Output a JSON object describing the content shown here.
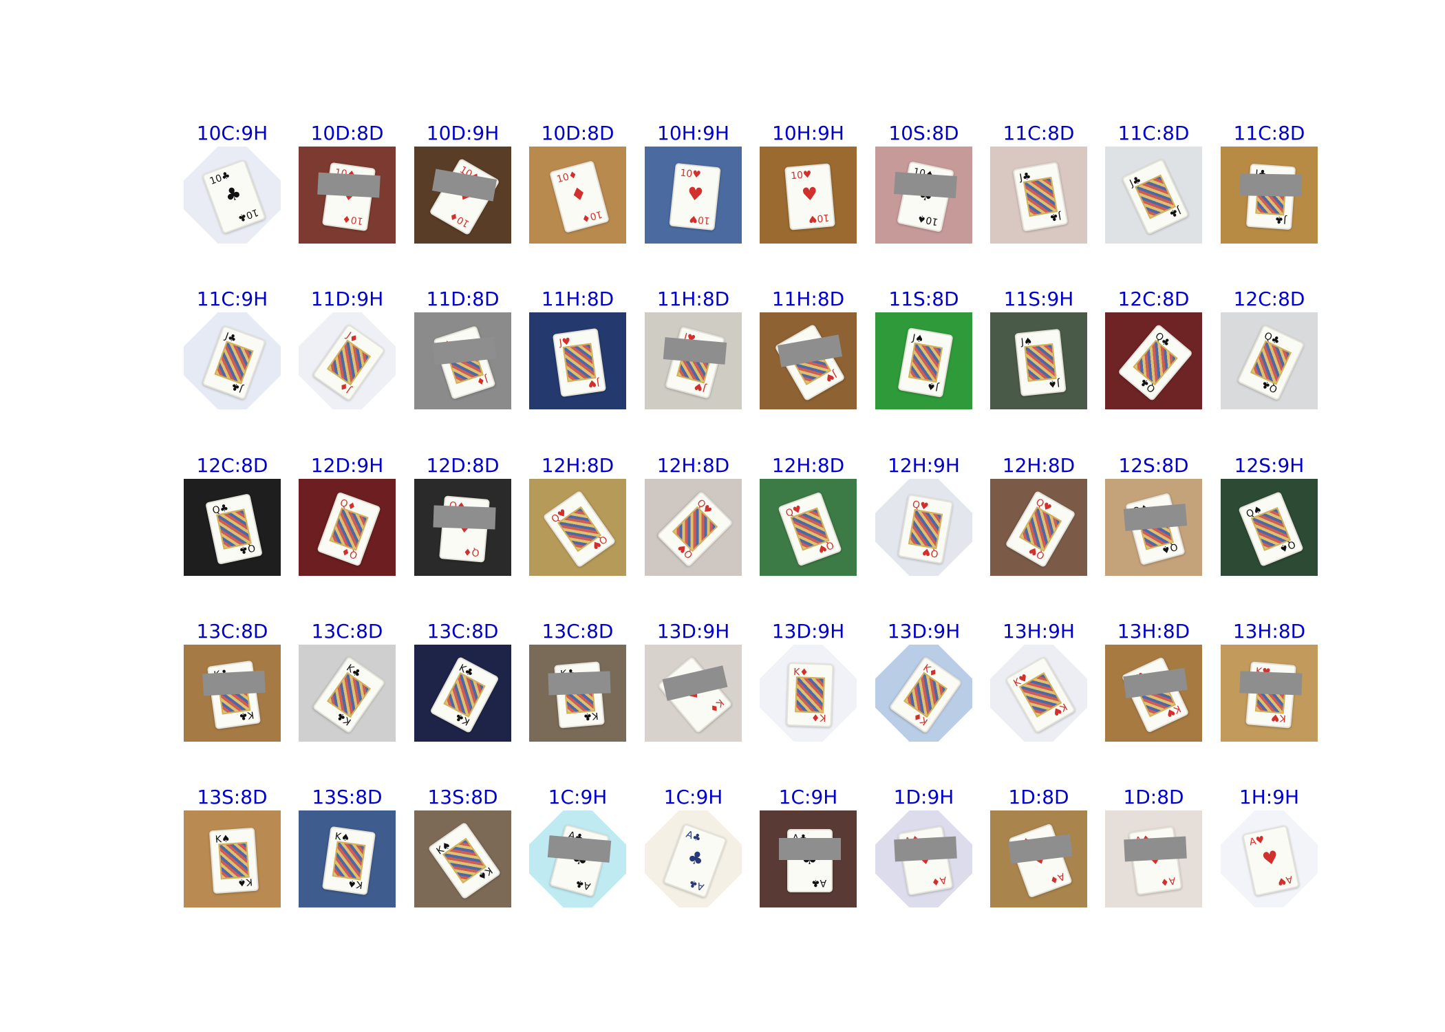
{
  "rows": [
    [
      {
        "label": "10C:9H",
        "bg": "#e9ecf4",
        "rank": "10",
        "suit": "♣",
        "color": "#111111",
        "face": false,
        "rot": -20,
        "corners": true
      },
      {
        "label": "10D:8D",
        "bg": "#7d3a30",
        "rank": "10",
        "suit": "♦",
        "color": "#d2302c",
        "face": false,
        "rot": 8,
        "redact": true
      },
      {
        "label": "10D:9H",
        "bg": "#5a3d26",
        "rank": "10",
        "suit": "♦",
        "color": "#d2302c",
        "face": false,
        "rot": 30,
        "redact": true
      },
      {
        "label": "10D:8D",
        "bg": "#b98a4e",
        "rank": "10",
        "suit": "♦",
        "color": "#d2302c",
        "face": false,
        "rot": -15
      },
      {
        "label": "10H:9H",
        "bg": "#4b6aa0",
        "rank": "10",
        "suit": "♥",
        "color": "#d2302c",
        "face": false,
        "rot": 6
      },
      {
        "label": "10H:9H",
        "bg": "#9a6a30",
        "rank": "10",
        "suit": "♥",
        "color": "#d2302c",
        "face": false,
        "rot": -5
      },
      {
        "label": "10S:8D",
        "bg": "#c79a9a",
        "rank": "10",
        "suit": "♠",
        "color": "#111111",
        "face": false,
        "rot": 12,
        "redact": true
      },
      {
        "label": "11C:8D",
        "bg": "#d9c7c2",
        "rank": "J",
        "suit": "♣",
        "color": "#111111",
        "face": true,
        "rot": -10
      },
      {
        "label": "11C:8D",
        "bg": "#dfe2e4",
        "rank": "J",
        "suit": "♣",
        "color": "#111111",
        "face": true,
        "rot": -25
      },
      {
        "label": "11C:8D",
        "bg": "#b88b45",
        "rank": "J",
        "suit": "♣",
        "color": "#111111",
        "face": true,
        "rot": 4,
        "redact": true
      }
    ],
    [
      {
        "label": "11C:9H",
        "bg": "#e6eaf4",
        "rank": "J",
        "suit": "♣",
        "color": "#111111",
        "face": true,
        "rot": 20,
        "corners": true
      },
      {
        "label": "11D:9H",
        "bg": "#eef0f6",
        "rank": "J",
        "suit": "♦",
        "color": "#d2302c",
        "face": true,
        "rot": 35,
        "corners": true
      },
      {
        "label": "11D:8D",
        "bg": "#8b8b8b",
        "rank": "J",
        "suit": "♦",
        "color": "#d2302c",
        "face": true,
        "rot": -18,
        "redact": true
      },
      {
        "label": "11H:8D",
        "bg": "#243a6e",
        "rank": "J",
        "suit": "♥",
        "color": "#d2302c",
        "face": true,
        "rot": -8
      },
      {
        "label": "11H:8D",
        "bg": "#cfccc4",
        "rank": "J",
        "suit": "♥",
        "color": "#d2302c",
        "face": true,
        "rot": 15,
        "redact": true
      },
      {
        "label": "11H:8D",
        "bg": "#8e6232",
        "rank": "J",
        "suit": "♥",
        "color": "#d2302c",
        "face": true,
        "rot": -30,
        "redact": true
      },
      {
        "label": "11S:8D",
        "bg": "#2f9a3a",
        "rank": "J",
        "suit": "♠",
        "color": "#111111",
        "face": true,
        "rot": 10
      },
      {
        "label": "11S:9H",
        "bg": "#4a5a48",
        "rank": "J",
        "suit": "♠",
        "color": "#111111",
        "face": true,
        "rot": -6
      },
      {
        "label": "12C:8D",
        "bg": "#6e2424",
        "rank": "Q",
        "suit": "♣",
        "color": "#111111",
        "face": true,
        "rot": 40
      },
      {
        "label": "12C:8D",
        "bg": "#d8dadc",
        "rank": "Q",
        "suit": "♣",
        "color": "#111111",
        "face": true,
        "rot": 25
      }
    ],
    [
      {
        "label": "12C:8D",
        "bg": "#1e1e1e",
        "rank": "Q",
        "suit": "♣",
        "color": "#111111",
        "face": true,
        "rot": -12
      },
      {
        "label": "12D:9H",
        "bg": "#6c1e20",
        "rank": "Q",
        "suit": "♦",
        "color": "#d2302c",
        "face": true,
        "rot": 20
      },
      {
        "label": "12D:8D",
        "bg": "#2a2a2a",
        "rank": "Q",
        "suit": "♦",
        "color": "#d2302c",
        "face": false,
        "rot": 5,
        "redact": true
      },
      {
        "label": "12H:8D",
        "bg": "#b69a5a",
        "rank": "Q",
        "suit": "♥",
        "color": "#d2302c",
        "face": true,
        "rot": -35
      },
      {
        "label": "12H:8D",
        "bg": "#cfc7c2",
        "rank": "Q",
        "suit": "♥",
        "color": "#d2302c",
        "face": true,
        "rot": 45
      },
      {
        "label": "12H:8D",
        "bg": "#3c7a46",
        "rank": "Q",
        "suit": "♥",
        "color": "#d2302c",
        "face": true,
        "rot": -20
      },
      {
        "label": "12H:9H",
        "bg": "#e4e6ee",
        "rank": "Q",
        "suit": "♥",
        "color": "#d2302c",
        "face": true,
        "rot": 10,
        "corners": true
      },
      {
        "label": "12H:8D",
        "bg": "#7b5b48",
        "rank": "Q",
        "suit": "♥",
        "color": "#d2302c",
        "face": true,
        "rot": 30
      },
      {
        "label": "12S:8D",
        "bg": "#c4a27a",
        "rank": "Q",
        "suit": "♠",
        "color": "#111111",
        "face": true,
        "rot": -15,
        "redact": true
      },
      {
        "label": "12S:9H",
        "bg": "#2c4a34",
        "rank": "Q",
        "suit": "♠",
        "color": "#111111",
        "face": true,
        "rot": -22
      }
    ],
    [
      {
        "label": "13C:8D",
        "bg": "#a67a44",
        "rank": "K",
        "suit": "♣",
        "color": "#111111",
        "face": true,
        "rot": -8,
        "redact": true
      },
      {
        "label": "13C:8D",
        "bg": "#cfcfcf",
        "rank": "K",
        "suit": "♣",
        "color": "#111111",
        "face": true,
        "rot": 35
      },
      {
        "label": "13C:8D",
        "bg": "#1e2448",
        "rank": "K",
        "suit": "♣",
        "color": "#111111",
        "face": true,
        "rot": 28
      },
      {
        "label": "13C:8D",
        "bg": "#7a6a58",
        "rank": "K",
        "suit": "♣",
        "color": "#111111",
        "face": true,
        "rot": -5,
        "redact": true
      },
      {
        "label": "13D:9H",
        "bg": "#d7d2cc",
        "rank": "K",
        "suit": "♦",
        "color": "#d2302c",
        "face": false,
        "rot": -40,
        "redact": true
      },
      {
        "label": "13D:9H",
        "bg": "#f0f2f8",
        "rank": "K",
        "suit": "♦",
        "color": "#d2302c",
        "face": true,
        "rot": 2,
        "corners": true
      },
      {
        "label": "13D:9H",
        "bg": "#b9cde6",
        "rank": "K",
        "suit": "♦",
        "color": "#d2302c",
        "face": true,
        "rot": 35,
        "corners": true
      },
      {
        "label": "13H:9H",
        "bg": "#eceef4",
        "rank": "K",
        "suit": "♥",
        "color": "#d2302c",
        "face": true,
        "rot": -30,
        "corners": true
      },
      {
        "label": "13H:8D",
        "bg": "#a77a42",
        "rank": "K",
        "suit": "♥",
        "color": "#d2302c",
        "face": true,
        "rot": -25,
        "redact": true
      },
      {
        "label": "13H:8D",
        "bg": "#c19a5c",
        "rank": "K",
        "suit": "♥",
        "color": "#d2302c",
        "face": true,
        "rot": 5,
        "redact": true
      }
    ],
    [
      {
        "label": "13S:8D",
        "bg": "#b98a52",
        "rank": "K",
        "suit": "♠",
        "color": "#111111",
        "face": true,
        "rot": -4
      },
      {
        "label": "13S:8D",
        "bg": "#3e5c8e",
        "rank": "K",
        "suit": "♠",
        "color": "#111111",
        "face": true,
        "rot": 8
      },
      {
        "label": "13S:8D",
        "bg": "#7c6a56",
        "rank": "K",
        "suit": "♠",
        "color": "#111111",
        "face": true,
        "rot": -35
      },
      {
        "label": "1C:9H",
        "bg": "#bfeaf2",
        "rank": "A",
        "suit": "♣",
        "color": "#111111",
        "face": false,
        "rot": 15,
        "corners": true,
        "redact": true
      },
      {
        "label": "1C:9H",
        "bg": "#f4f0e6",
        "rank": "A",
        "suit": "♣",
        "color": "#2a3a78",
        "face": false,
        "rot": 20,
        "corners": true
      },
      {
        "label": "1C:9H",
        "bg": "#5a3a34",
        "rank": "A",
        "suit": "♣",
        "color": "#111111",
        "face": false,
        "rot": 0,
        "redact": true
      },
      {
        "label": "1D:9H",
        "bg": "#dcdcec",
        "rank": "A",
        "suit": "♦",
        "color": "#d2302c",
        "face": false,
        "rot": -10,
        "corners": true,
        "redact": true
      },
      {
        "label": "1D:8D",
        "bg": "#a9844c",
        "rank": "A",
        "suit": "♦",
        "color": "#d2302c",
        "face": false,
        "rot": -20,
        "redact": true
      },
      {
        "label": "1D:8D",
        "bg": "#e6ded8",
        "rank": "A",
        "suit": "♦",
        "color": "#d2302c",
        "face": false,
        "rot": -8,
        "redact": true
      },
      {
        "label": "1H:9H",
        "bg": "#f2f4fa",
        "rank": "A",
        "suit": "♥",
        "color": "#d2302c",
        "face": false,
        "rot": -12,
        "corners": true
      }
    ]
  ]
}
